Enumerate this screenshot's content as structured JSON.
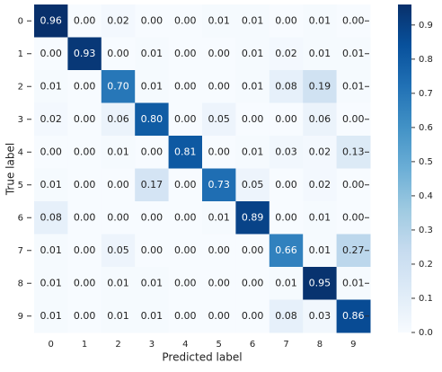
{
  "chart_data": {
    "type": "heatmap",
    "xlabel": "Predicted label",
    "ylabel": "True label",
    "x_categories": [
      "0",
      "1",
      "2",
      "3",
      "4",
      "5",
      "6",
      "7",
      "8",
      "9"
    ],
    "y_categories": [
      "0",
      "1",
      "2",
      "3",
      "4",
      "5",
      "6",
      "7",
      "8",
      "9"
    ],
    "values": [
      [
        0.96,
        0.0,
        0.02,
        0.0,
        0.0,
        0.01,
        0.01,
        0.0,
        0.01,
        0.0
      ],
      [
        0.0,
        0.93,
        0.0,
        0.01,
        0.0,
        0.0,
        0.01,
        0.02,
        0.01,
        0.01
      ],
      [
        0.01,
        0.0,
        0.7,
        0.01,
        0.0,
        0.0,
        0.01,
        0.08,
        0.19,
        0.01
      ],
      [
        0.02,
        0.0,
        0.06,
        0.8,
        0.0,
        0.05,
        0.0,
        0.0,
        0.06,
        0.0
      ],
      [
        0.0,
        0.0,
        0.01,
        0.0,
        0.81,
        0.0,
        0.01,
        0.03,
        0.02,
        0.13
      ],
      [
        0.01,
        0.0,
        0.0,
        0.17,
        0.0,
        0.73,
        0.05,
        0.0,
        0.02,
        0.0
      ],
      [
        0.08,
        0.0,
        0.0,
        0.0,
        0.0,
        0.01,
        0.89,
        0.0,
        0.01,
        0.0
      ],
      [
        0.01,
        0.0,
        0.05,
        0.0,
        0.0,
        0.0,
        0.0,
        0.66,
        0.01,
        0.27
      ],
      [
        0.01,
        0.0,
        0.01,
        0.01,
        0.0,
        0.0,
        0.0,
        0.01,
        0.95,
        0.01
      ],
      [
        0.01,
        0.0,
        0.01,
        0.01,
        0.0,
        0.0,
        0.0,
        0.08,
        0.03,
        0.86
      ]
    ],
    "value_labels": [
      [
        "0.96",
        "0.00",
        "0.02",
        "0.00",
        "0.00",
        "0.01",
        "0.01",
        "0.00",
        "0.01",
        "0.00"
      ],
      [
        "0.00",
        "0.93",
        "0.00",
        "0.01",
        "0.00",
        "0.00",
        "0.01",
        "0.02",
        "0.01",
        "0.01"
      ],
      [
        "0.01",
        "0.00",
        "0.70",
        "0.01",
        "0.00",
        "0.00",
        "0.01",
        "0.08",
        "0.19",
        "0.01"
      ],
      [
        "0.02",
        "0.00",
        "0.06",
        "0.80",
        "0.00",
        "0.05",
        "0.00",
        "0.00",
        "0.06",
        "0.00"
      ],
      [
        "0.00",
        "0.00",
        "0.01",
        "0.00",
        "0.81",
        "0.00",
        "0.01",
        "0.03",
        "0.02",
        "0.13"
      ],
      [
        "0.01",
        "0.00",
        "0.00",
        "0.17",
        "0.00",
        "0.73",
        "0.05",
        "0.00",
        "0.02",
        "0.00"
      ],
      [
        "0.08",
        "0.00",
        "0.00",
        "0.00",
        "0.00",
        "0.01",
        "0.89",
        "0.00",
        "0.01",
        "0.00"
      ],
      [
        "0.01",
        "0.00",
        "0.05",
        "0.00",
        "0.00",
        "0.00",
        "0.00",
        "0.66",
        "0.01",
        "0.27"
      ],
      [
        "0.01",
        "0.00",
        "0.01",
        "0.01",
        "0.00",
        "0.00",
        "0.00",
        "0.01",
        "0.95",
        "0.01"
      ],
      [
        "0.01",
        "0.00",
        "0.01",
        "0.01",
        "0.00",
        "0.00",
        "0.00",
        "0.08",
        "0.03",
        "0.86"
      ]
    ],
    "colormap": "Blues",
    "clim": [
      0,
      0.96
    ],
    "cticks": [
      {
        "value": 0,
        "label": "0.0"
      },
      0.1,
      0.2,
      0.3,
      0.4,
      0.5,
      0.6,
      0.7,
      0.8,
      0.9
    ]
  }
}
